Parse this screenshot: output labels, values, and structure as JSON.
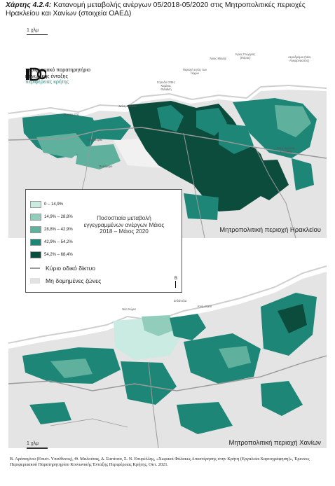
{
  "caption": {
    "lead": "Χάρτης 4.2.4:",
    "text": " Κατανομή μεταβολής ανέργων 05/2018-05/2020 στις Μητροπολιτικές περιοχές Ηρακλείου και Χανίων (στοιχεία ΟΑΕΔ)"
  },
  "scale_label": "1 χλμ",
  "logo": {
    "line1": "περιφερειακό παρατηρητήριο",
    "line2": "κοινωνικής ένταξης",
    "line3": "περιφέρειας κρήτης"
  },
  "map_top": {
    "title": "Μητροπολιτική περιοχή Ηρακλείου",
    "place_labels": [
      "Γηπεδο ΟΦΗ, Καμίνια, Φιλοθέη",
      "Περιοχή εντός των τειχών",
      "Άγιος Μηνάς",
      "Άγιος Γεώργιος (Πόρος)",
      "Αεροδρόμιο (Νέα Αλικαρνασσός)",
      "Άγιος Ιωάννης Καλλιθέα",
      "Δείνη Ελλάδα",
      "Μασταμπάς",
      "Αρχ. Μορίκι",
      "Βούλγαρο"
    ]
  },
  "map_bottom": {
    "title": "Μητροπολιτική περιοχή Χανίων",
    "place_labels": [
      "Σπλάντζια",
      "Κούμ Καπί",
      "Νέα Χώρα"
    ]
  },
  "legend": {
    "classes": [
      {
        "label": "0 – 14,9%",
        "color": "#c9ebe1"
      },
      {
        "label": "14,9% – 28,8%",
        "color": "#92cdbc"
      },
      {
        "label": "28,8% – 42,9%",
        "color": "#5fb09c"
      },
      {
        "label": "42,9% – 54,2%",
        "color": "#1d8677"
      },
      {
        "label": "54,2% – 68,4%",
        "color": "#0c4c3c"
      }
    ],
    "title": "Ποσοστιαία μεταβολή εγγεγραμμένων ανέργων Μάιος 2018 – Μάιος 2020",
    "road_label": "Κύριο οδικό δίκτυο",
    "unbuilt_label": "Μη δομημένες ζώνες",
    "north": "Β"
  },
  "credit": "Β. Αράπογλου (Επιστ. Υπεύθυνος), Θ. Μαλούτας, Δ. Σιατίτσα, Σ. Ν. Επυρέλλης, «Χωρικοί Φύλακες Αποστέρησης στην Κρήτη (Εργαλεία-Χαρτογράφηση)», Έρευνες Περιφερειακού Παρατηρητηρίου Κοινωνικής Ένταξης Περιφέρειας Κρήτης, Οκτ. 2021."
}
